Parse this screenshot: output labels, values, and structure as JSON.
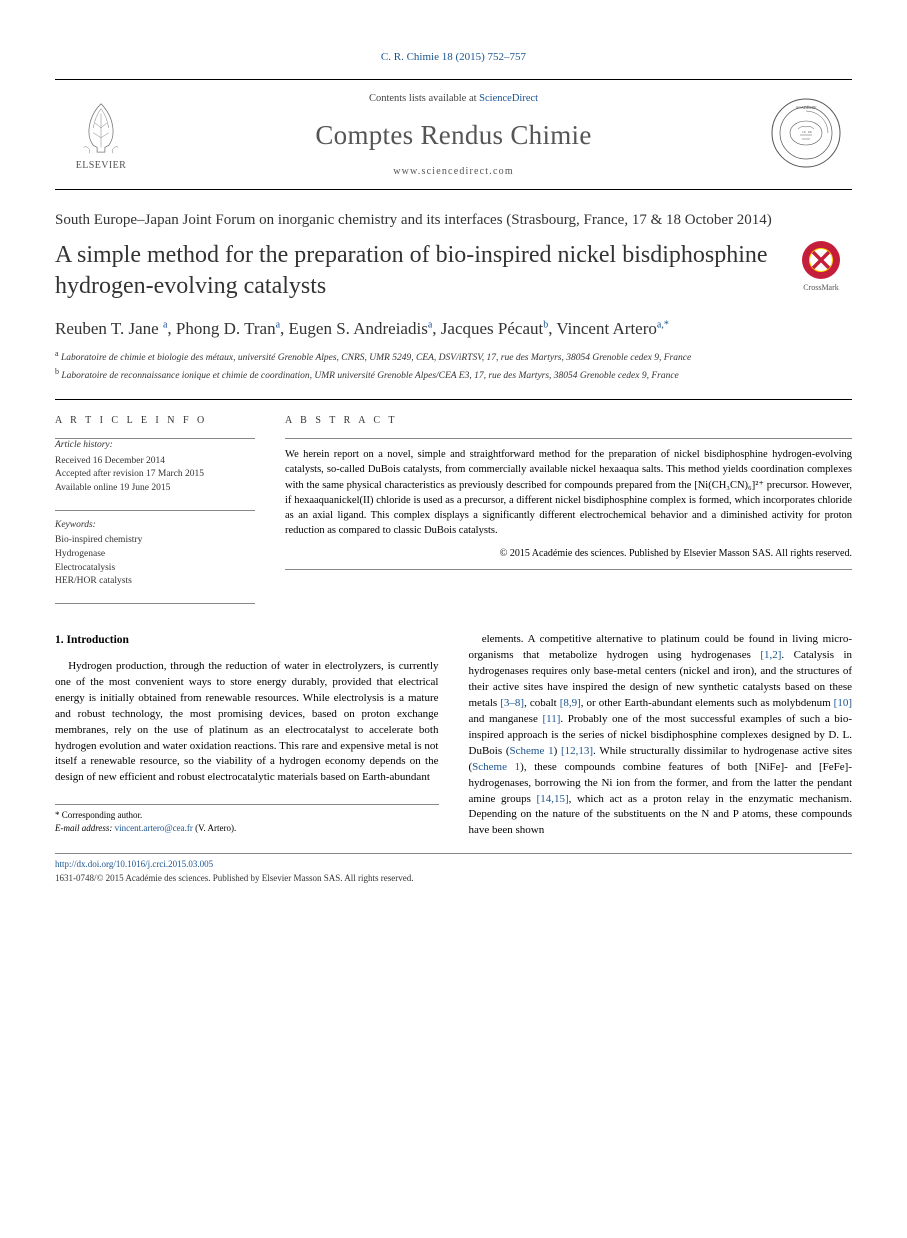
{
  "citation": "C. R. Chimie 18 (2015) 752–757",
  "header": {
    "contents_prefix": "Contents lists available at ",
    "contents_link": "ScienceDirect",
    "journal_name": "Comptes Rendus Chimie",
    "journal_url": "www.sciencedirect.com",
    "elsevier_label": "ELSEVIER"
  },
  "forum_line": "South Europe–Japan Joint Forum on inorganic chemistry and its interfaces (Strasbourg, France, 17 & 18 October 2014)",
  "title": "A simple method for the preparation of bio-inspired nickel bisdiphosphine hydrogen-evolving catalysts",
  "crossmark_label": "CrossMark",
  "authors_html": "Reuben T. Jane <sup>a</sup>, Phong D. Tran<sup>a</sup>, Eugen S. Andreiadis<sup>a</sup>, Jacques Pécaut<sup>b</sup>, Vincent Artero<sup>a,*</sup>",
  "affiliations": [
    {
      "sup": "a",
      "text": "Laboratoire de chimie et biologie des métaux, université Grenoble Alpes, CNRS, UMR 5249, CEA, DSV/iRTSV, 17, rue des Martyrs, 38054 Grenoble cedex 9, France"
    },
    {
      "sup": "b",
      "text": "Laboratoire de reconnaissance ionique et chimie de coordination, UMR université Grenoble Alpes/CEA E3, 17, rue des Martyrs, 38054 Grenoble cedex 9, France"
    }
  ],
  "article_info": {
    "heading": "A R T I C L E   I N F O",
    "history_label": "Article history:",
    "history": "Received 16 December 2014\nAccepted after revision 17 March 2015\nAvailable online 19 June 2015",
    "keywords_label": "Keywords:",
    "keywords": "Bio-inspired chemistry\nHydrogenase\nElectrocatalysis\nHER/HOR catalysts"
  },
  "abstract": {
    "heading": "A B S T R A C T",
    "text": "We herein report on a novel, simple and straightforward method for the preparation of nickel bisdiphosphine hydrogen-evolving catalysts, so-called DuBois catalysts, from commercially available nickel hexaaqua salts. This method yields coordination complexes with the same physical characteristics as previously described for compounds prepared from the [Ni(CH₃CN)₆]²⁺ precursor. However, if hexaaquanickel(II) chloride is used as a precursor, a different nickel bisdiphosphine complex is formed, which incorporates chloride as an axial ligand. This complex displays a significantly different electrochemical behavior and a diminished activity for proton reduction as compared to classic DuBois catalysts.",
    "copyright": "© 2015 Académie des sciences. Published by Elsevier Masson SAS. All rights reserved."
  },
  "body": {
    "section_heading": "1. Introduction",
    "col1": "Hydrogen production, through the reduction of water in electrolyzers, is currently one of the most convenient ways to store energy durably, provided that electrical energy is initially obtained from renewable resources. While electrolysis is a mature and robust technology, the most promising devices, based on proton exchange membranes, rely on the use of platinum as an electrocatalyst to accelerate both hydrogen evolution and water oxidation reactions. This rare and expensive metal is not itself a renewable resource, so the viability of a hydrogen economy depends on the design of new efficient and robust electrocatalytic materials based on Earth-abundant",
    "col2": "elements. A competitive alternative to platinum could be found in living micro-organisms that metabolize hydrogen using hydrogenases [1,2]. Catalysis in hydrogenases requires only base-metal centers (nickel and iron), and the structures of their active sites have inspired the design of new synthetic catalysts based on these metals [3–8], cobalt [8,9], or other Earth-abundant elements such as molybdenum [10] and manganese [11]. Probably one of the most successful examples of such a bio-inspired approach is the series of nickel bisdiphosphine complexes designed by D. L. DuBois (Scheme 1) [12,13]. While structurally dissimilar to hydrogenase active sites (Scheme 1), these compounds combine features of both [NiFe]- and [FeFe]-hydrogenases, borrowing the Ni ion from the former, and from the latter the pendant amine groups [14,15], which act as a proton relay in the enzymatic mechanism. Depending on the nature of the substituents on the N and P atoms, these compounds have been shown",
    "refs": {
      "r12": "[1,2]",
      "r38": "[3–8]",
      "r89": "[8,9]",
      "r10": "[10]",
      "r11": "[11]",
      "scheme1a": "Scheme 1",
      "r1213": "[12,13]",
      "scheme1b": "Scheme 1",
      "r1415": "[14,15]"
    }
  },
  "footnote": {
    "marker": "*",
    "label": "Corresponding author.",
    "email_label": "E-mail address:",
    "email": "vincent.artero@cea.fr",
    "email_suffix": "(V. Artero)."
  },
  "footer": {
    "doi": "http://dx.doi.org/10.1016/j.crci.2015.03.005",
    "issn_line": "1631-0748/© 2015 Académie des sciences. Published by Elsevier Masson SAS. All rights reserved."
  },
  "colors": {
    "link": "#1a5490",
    "text": "#333333",
    "rule": "#000000",
    "crossmark_outer": "#c41e3a",
    "crossmark_inner": "#ffd700"
  }
}
